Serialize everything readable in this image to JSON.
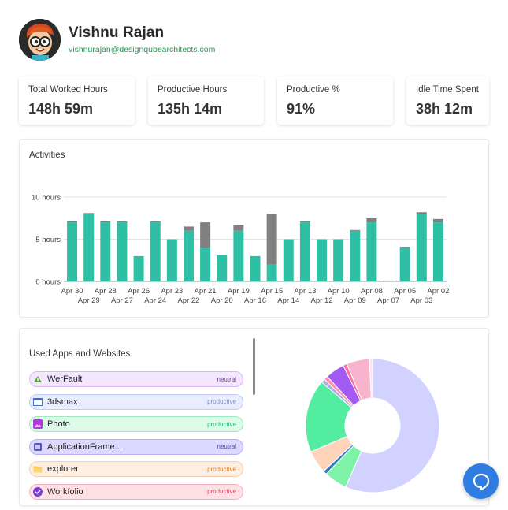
{
  "profile": {
    "name": "Vishnu Rajan",
    "email": "vishnurajan@designqubearchitects.com",
    "avatar_icon": "cartoon-avatar-icon"
  },
  "stats": [
    {
      "label": "Total Worked Hours",
      "value": "148h 59m"
    },
    {
      "label": "Productive Hours",
      "value": "135h 14m"
    },
    {
      "label": "Productive %",
      "value": "91%"
    },
    {
      "label": "Idle Time Spent",
      "value": "38h 12m"
    }
  ],
  "activities": {
    "title": "Activities",
    "chart_data": {
      "type": "bar",
      "stacked": true,
      "y_ticks": [
        "10 hours",
        "5 hours",
        "0 hours"
      ],
      "ylim": [
        0,
        10
      ],
      "categories": [
        "Apr 30",
        "Apr 29",
        "Apr 28",
        "Apr 27",
        "Apr 26",
        "Apr 24",
        "Apr 23",
        "Apr 22",
        "Apr 21",
        "Apr 20",
        "Apr 19",
        "Apr 16",
        "Apr 15",
        "Apr 14",
        "Apr 13",
        "Apr 12",
        "Apr 10",
        "Apr 09",
        "Apr 08",
        "Apr 07",
        "Apr 05",
        "Apr 03",
        "Apr 02"
      ],
      "series": [
        {
          "values": [
            7.0,
            8.0,
            7.0,
            7.0,
            3.0,
            7.0,
            5.0,
            6.0,
            4.0,
            3.1,
            6.0,
            3.0,
            2.0,
            5.0,
            7.0,
            5.0,
            5.0,
            6.0,
            7.0,
            0,
            4.0,
            8.0,
            7.0
          ],
          "color": "#2ebfa5"
        },
        {
          "values": [
            0.2,
            0.1,
            0.2,
            0.1,
            0,
            0.1,
            0,
            0.5,
            3.0,
            0,
            0.7,
            0,
            6.0,
            0,
            0.1,
            0,
            0,
            0.1,
            0.5,
            0.1,
            0.1,
            0.2,
            0.4
          ],
          "color": "#808080"
        }
      ],
      "grid": true
    }
  },
  "apps": {
    "title": "Used Apps and Websites",
    "items": [
      {
        "name": "WerFault",
        "category": "neutral",
        "icon": "werfault-icon",
        "bg": "#f5e6ff",
        "border": "#d9b8f0",
        "cat_color": "#6b3a8a"
      },
      {
        "name": "3dsmax",
        "category": "productive",
        "icon": "window-icon",
        "bg": "#e8edff",
        "border": "#c2cdf5",
        "cat_color": "#8891b8"
      },
      {
        "name": "Photo",
        "category": "productive",
        "icon": "photo-icon",
        "bg": "#dcfbe8",
        "border": "#9ee9bd",
        "cat_color": "#27b56b"
      },
      {
        "name": "ApplicationFrame...",
        "category": "neutral",
        "icon": "app-frame-icon",
        "bg": "#dcd8ff",
        "border": "#b8b0f0",
        "cat_color": "#4b3fa0"
      },
      {
        "name": "explorer",
        "category": "productive",
        "icon": "folder-icon",
        "bg": "#ffefe2",
        "border": "#f5cfaf",
        "cat_color": "#d6802f"
      },
      {
        "name": "Workfolio",
        "category": "productive",
        "icon": "workfolio-icon",
        "bg": "#ffe0e4",
        "border": "#f3b3bd",
        "cat_color": "#d04860"
      }
    ],
    "chart_data": {
      "type": "pie",
      "donut": true,
      "values": [
        61,
        6,
        1,
        6,
        19,
        1,
        1,
        5,
        1,
        6,
        0.8
      ],
      "colors": [
        "#d1d2ff",
        "#7ef3a8",
        "#2d7bbf",
        "#ffd4ba",
        "#52eda1",
        "#b8a8e0",
        "#ff8fb0",
        "#a35af2",
        "#ff6fa1",
        "#f8b4cc",
        "#f7e6f0"
      ]
    }
  },
  "chat": {
    "icon": "chat-bubble-icon"
  }
}
